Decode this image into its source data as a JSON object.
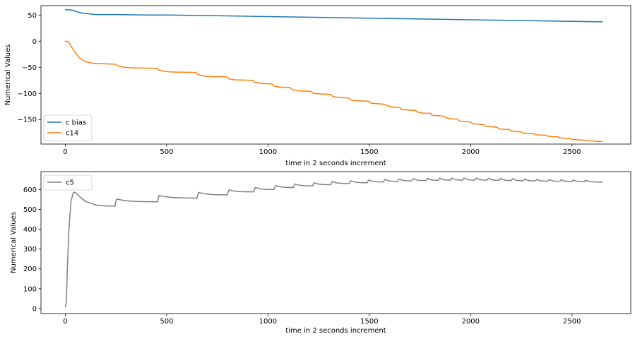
{
  "chart_data": [
    {
      "type": "line",
      "title": "",
      "xlabel": "time in 2 seconds increment",
      "ylabel": "Numerical Values",
      "xlim": [
        -120,
        2790
      ],
      "ylim": [
        -197,
        68
      ],
      "xticks": [
        0,
        500,
        1000,
        1500,
        2000,
        2500
      ],
      "yticks": [
        50,
        0,
        -50,
        -100,
        -150
      ],
      "grid": false,
      "legend": "lower-left",
      "series": [
        {
          "name": "c bias",
          "color": "#1f77b4",
          "style": "smooth",
          "points": [
            [
              0,
              60
            ],
            [
              20,
              60
            ],
            [
              40,
              59
            ],
            [
              60,
              56
            ],
            [
              80,
              54
            ],
            [
              100,
              53
            ],
            [
              150,
              51
            ],
            [
              250,
              51
            ],
            [
              400,
              50
            ],
            [
              500,
              50
            ],
            [
              700,
              49
            ],
            [
              1000,
              47
            ],
            [
              1500,
              44
            ],
            [
              2000,
              41
            ],
            [
              2500,
              38
            ],
            [
              2650,
              37
            ]
          ]
        },
        {
          "name": "c14",
          "color": "#ff7f0e",
          "style": "stairs",
          "points": [
            [
              0,
              0
            ],
            [
              15,
              -1
            ],
            [
              25,
              -7
            ],
            [
              45,
              -20
            ],
            [
              70,
              -32
            ],
            [
              100,
              -39
            ],
            [
              130,
              -42
            ],
            [
              170,
              -43
            ],
            [
              245,
              -44
            ],
            [
              255,
              -47
            ],
            [
              290,
              -50
            ],
            [
              320,
              -51
            ],
            [
              450,
              -52
            ],
            [
              460,
              -55
            ],
            [
              490,
              -58
            ],
            [
              520,
              -59
            ],
            [
              645,
              -60
            ],
            [
              655,
              -64
            ],
            [
              690,
              -67
            ],
            [
              720,
              -68
            ],
            [
              795,
              -68
            ],
            [
              805,
              -72
            ],
            [
              835,
              -74
            ],
            [
              925,
              -75
            ],
            [
              935,
              -79
            ],
            [
              975,
              -81
            ],
            [
              1020,
              -82
            ],
            [
              1030,
              -86
            ],
            [
              1060,
              -88
            ],
            [
              1110,
              -89
            ],
            [
              1120,
              -93
            ],
            [
              1150,
              -95
            ],
            [
              1210,
              -96
            ],
            [
              1225,
              -100
            ],
            [
              1260,
              -101
            ],
            [
              1310,
              -102
            ],
            [
              1320,
              -106
            ],
            [
              1350,
              -108
            ],
            [
              1400,
              -109
            ],
            [
              1410,
              -113
            ],
            [
              1440,
              -114
            ],
            [
              1500,
              -115
            ],
            [
              1510,
              -119
            ],
            [
              1550,
              -120
            ],
            [
              1575,
              -121
            ],
            [
              1590,
              -124
            ],
            [
              1620,
              -126
            ],
            [
              1650,
              -127
            ],
            [
              1660,
              -131
            ],
            [
              1700,
              -132
            ],
            [
              1730,
              -133
            ],
            [
              1740,
              -136
            ],
            [
              1770,
              -138
            ],
            [
              1800,
              -138
            ],
            [
              1810,
              -142
            ],
            [
              1850,
              -143
            ],
            [
              1870,
              -144
            ],
            [
              1880,
              -147
            ],
            [
              1910,
              -149
            ],
            [
              1935,
              -149
            ],
            [
              1945,
              -153
            ],
            [
              1980,
              -154
            ],
            [
              2000,
              -155
            ],
            [
              2010,
              -158
            ],
            [
              2040,
              -159
            ],
            [
              2065,
              -160
            ],
            [
              2075,
              -163
            ],
            [
              2110,
              -164
            ],
            [
              2130,
              -165
            ],
            [
              2140,
              -168
            ],
            [
              2175,
              -169
            ],
            [
              2190,
              -169
            ],
            [
              2200,
              -172
            ],
            [
              2230,
              -173
            ],
            [
              2250,
              -174
            ],
            [
              2260,
              -176
            ],
            [
              2290,
              -177
            ],
            [
              2310,
              -177
            ],
            [
              2320,
              -179
            ],
            [
              2350,
              -180
            ],
            [
              2370,
              -180
            ],
            [
              2380,
              -182
            ],
            [
              2410,
              -183
            ],
            [
              2430,
              -183
            ],
            [
              2440,
              -185
            ],
            [
              2470,
              -186
            ],
            [
              2490,
              -186
            ],
            [
              2500,
              -188
            ],
            [
              2530,
              -189
            ],
            [
              2550,
              -189
            ],
            [
              2560,
              -190
            ],
            [
              2590,
              -191
            ],
            [
              2610,
              -191
            ],
            [
              2620,
              -192
            ],
            [
              2650,
              -192
            ]
          ]
        }
      ]
    },
    {
      "type": "line",
      "title": "",
      "xlabel": "time in 2 seconds increment",
      "ylabel": "Numerical Values",
      "xlim": [
        -120,
        2790
      ],
      "ylim": [
        -25,
        690
      ],
      "xticks": [
        0,
        500,
        1000,
        1500,
        2000,
        2500
      ],
      "yticks": [
        600,
        500,
        400,
        300,
        200,
        100,
        0
      ],
      "grid": false,
      "legend": "upper-left",
      "series": [
        {
          "name": "c5",
          "color": "#7f7f7f",
          "style": "sawtooth",
          "start_points": [
            [
              0,
              10
            ],
            [
              5,
              30
            ],
            [
              10,
              200
            ],
            [
              18,
              400
            ],
            [
              28,
              540
            ],
            [
              40,
              585
            ],
            [
              50,
              585
            ],
            [
              70,
              565
            ],
            [
              100,
              540
            ],
            [
              150,
              522
            ],
            [
              200,
              517
            ],
            [
              245,
              516
            ]
          ],
          "teeth": [
            {
              "x0": 245,
              "x1": 455,
              "base": 515,
              "peak": 552,
              "end": 538
            },
            {
              "x0": 455,
              "x1": 650,
              "base": 538,
              "peak": 570,
              "end": 557
            },
            {
              "x0": 650,
              "x1": 800,
              "base": 557,
              "peak": 585,
              "end": 573
            },
            {
              "x0": 800,
              "x1": 930,
              "base": 573,
              "peak": 598,
              "end": 588
            },
            {
              "x0": 930,
              "x1": 1030,
              "base": 588,
              "peak": 610,
              "end": 600
            },
            {
              "x0": 1030,
              "x1": 1125,
              "base": 600,
              "peak": 620,
              "end": 610
            },
            {
              "x0": 1125,
              "x1": 1220,
              "base": 610,
              "peak": 628,
              "end": 618
            },
            {
              "x0": 1220,
              "x1": 1310,
              "base": 618,
              "peak": 634,
              "end": 624
            },
            {
              "x0": 1310,
              "x1": 1400,
              "base": 624,
              "peak": 640,
              "end": 630
            },
            {
              "x0": 1400,
              "x1": 1490,
              "base": 630,
              "peak": 644,
              "end": 634
            },
            {
              "x0": 1490,
              "x1": 1570,
              "base": 634,
              "peak": 648,
              "end": 638
            },
            {
              "x0": 1570,
              "x1": 1640,
              "base": 638,
              "peak": 651,
              "end": 641
            },
            {
              "x0": 1640,
              "x1": 1710,
              "base": 641,
              "peak": 653,
              "end": 643
            },
            {
              "x0": 1710,
              "x1": 1780,
              "base": 643,
              "peak": 655,
              "end": 645
            },
            {
              "x0": 1780,
              "x1": 1840,
              "base": 645,
              "peak": 657,
              "end": 646
            },
            {
              "x0": 1840,
              "x1": 1900,
              "base": 646,
              "peak": 658,
              "end": 647
            },
            {
              "x0": 1900,
              "x1": 1960,
              "base": 647,
              "peak": 658,
              "end": 647
            },
            {
              "x0": 1960,
              "x1": 2020,
              "base": 647,
              "peak": 658,
              "end": 647
            },
            {
              "x0": 2020,
              "x1": 2080,
              "base": 647,
              "peak": 658,
              "end": 647
            },
            {
              "x0": 2080,
              "x1": 2140,
              "base": 647,
              "peak": 657,
              "end": 646
            },
            {
              "x0": 2140,
              "x1": 2200,
              "base": 646,
              "peak": 656,
              "end": 645
            },
            {
              "x0": 2200,
              "x1": 2260,
              "base": 645,
              "peak": 655,
              "end": 644
            },
            {
              "x0": 2260,
              "x1": 2320,
              "base": 644,
              "peak": 653,
              "end": 643
            },
            {
              "x0": 2320,
              "x1": 2380,
              "base": 643,
              "peak": 651,
              "end": 642
            },
            {
              "x0": 2380,
              "x1": 2440,
              "base": 642,
              "peak": 650,
              "end": 641
            },
            {
              "x0": 2440,
              "x1": 2500,
              "base": 641,
              "peak": 649,
              "end": 640
            },
            {
              "x0": 2500,
              "x1": 2560,
              "base": 640,
              "peak": 648,
              "end": 639
            },
            {
              "x0": 2560,
              "x1": 2650,
              "base": 639,
              "peak": 646,
              "end": 637
            }
          ]
        }
      ]
    }
  ]
}
